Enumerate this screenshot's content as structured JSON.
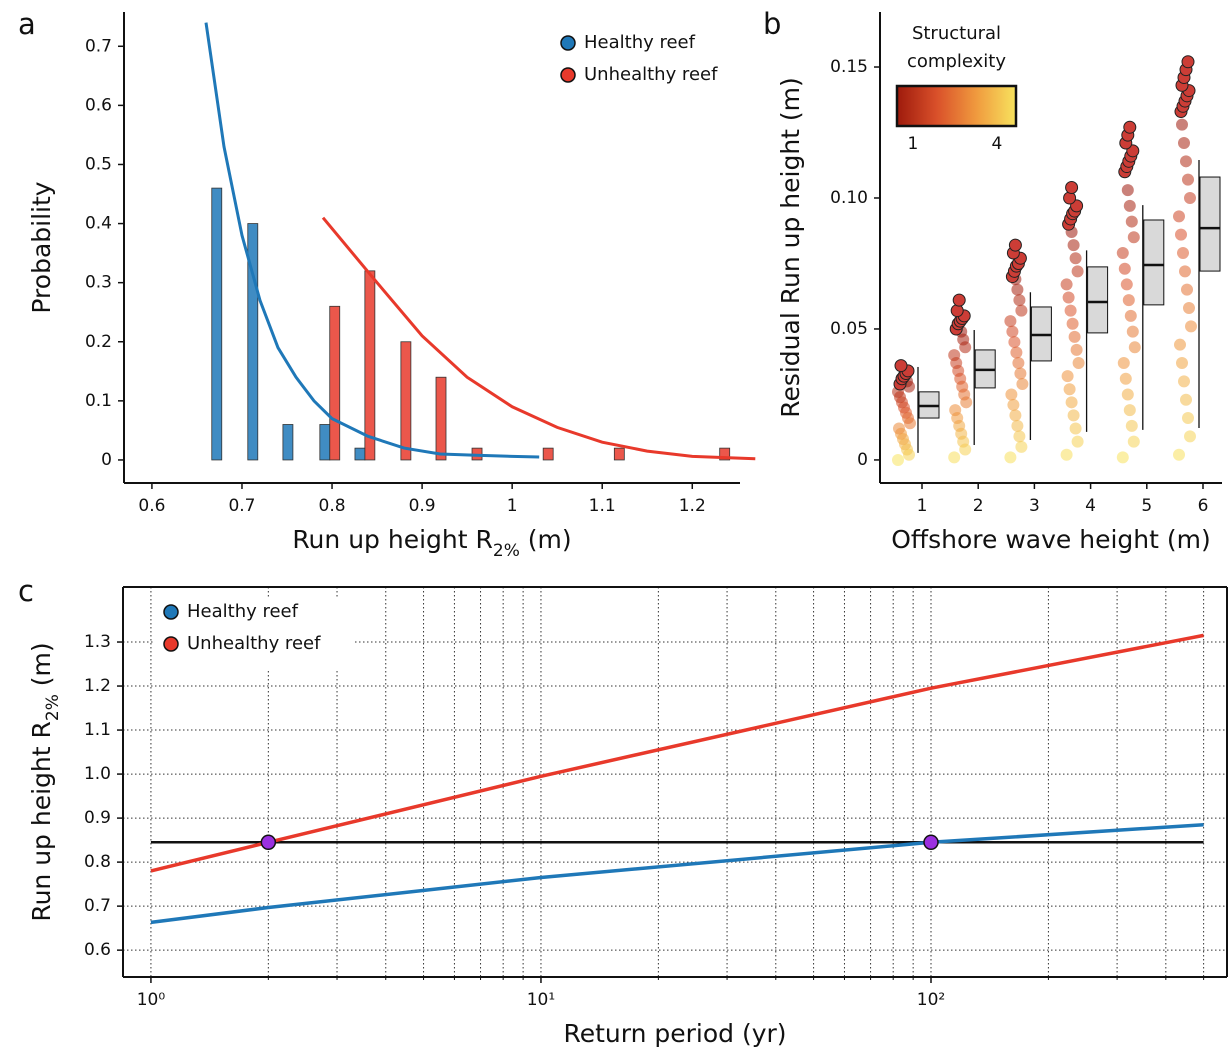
{
  "chart_data": [
    {
      "type": "bar",
      "panel": "a",
      "xlabel": [
        "Run up height R",
        "2%",
        " (m)"
      ],
      "ylabel": "Probability",
      "xlim": [
        0.569,
        1.253
      ],
      "ylim": [
        -0.039,
        0.758
      ],
      "xticks": [
        0.6,
        0.7,
        0.8,
        0.9,
        1.0,
        1.1,
        1.2
      ],
      "yticks": [
        0,
        0.1,
        0.2,
        0.3,
        0.4,
        0.5,
        0.6,
        0.7
      ],
      "spines": [
        "left",
        "bottom"
      ],
      "legend": "upper right",
      "series": [
        {
          "name": "Healthy reef",
          "color": "#1f78b8",
          "x": [
            0.672,
            0.712,
            0.751,
            0.792,
            0.831
          ],
          "values": [
            0.46,
            0.4,
            0.06,
            0.06,
            0.02
          ],
          "fit_x": [
            0.66,
            0.68,
            0.7,
            0.72,
            0.74,
            0.76,
            0.78,
            0.8,
            0.84,
            0.88,
            0.92,
            0.96,
            1.0,
            1.03
          ],
          "fit_values": [
            0.74,
            0.53,
            0.38,
            0.27,
            0.19,
            0.14,
            0.1,
            0.07,
            0.04,
            0.02,
            0.01,
            0.008,
            0.006,
            0.005
          ]
        },
        {
          "name": "Unhealthy reef",
          "color": "#e8392b",
          "x": [
            0.803,
            0.842,
            0.882,
            0.921,
            0.961,
            1.04,
            1.119,
            1.236
          ],
          "values": [
            0.26,
            0.32,
            0.2,
            0.14,
            0.02,
            0.02,
            0.02,
            0.02
          ],
          "fit_x": [
            0.79,
            0.85,
            0.9,
            0.95,
            1.0,
            1.05,
            1.1,
            1.15,
            1.2,
            1.27
          ],
          "fit_values": [
            0.41,
            0.3,
            0.21,
            0.14,
            0.09,
            0.055,
            0.03,
            0.015,
            0.006,
            0.002
          ]
        }
      ]
    },
    {
      "type": "box",
      "panel": "b",
      "xlabel": "Offshore wave height (m)",
      "ylabel": "Residual Run up height (m)",
      "categories": [
        "1",
        "2",
        "3",
        "4",
        "5",
        "6"
      ],
      "ylim": [
        -0.0088,
        0.171
      ],
      "yticks": [
        0,
        0.05,
        {
          "value": 0.1,
          "label": "0.10"
        },
        0.15
      ],
      "spines": [
        "left",
        "bottom"
      ],
      "colorbar": {
        "title": [
          "Structural",
          "complexity"
        ],
        "lim": [
          0.43,
          4.68
        ],
        "ticks": [
          1,
          4
        ],
        "colors": [
          "#9e1a0c",
          "#d9502a",
          "#f09a3e",
          "#f7e35e"
        ]
      },
      "highlight_color": "#cc3d36",
      "points": [
        [
          0.0,
          0.002,
          0.004,
          0.006,
          0.008,
          0.01,
          0.012,
          0.014,
          0.016,
          0.018,
          0.02,
          0.022,
          0.024,
          0.026,
          0.028,
          0.03
        ],
        [
          0.001,
          0.004,
          0.007,
          0.01,
          0.013,
          0.016,
          0.019,
          0.022,
          0.025,
          0.028,
          0.031,
          0.034,
          0.037,
          0.04,
          0.043,
          0.046,
          0.049
        ],
        [
          0.001,
          0.005,
          0.009,
          0.013,
          0.017,
          0.021,
          0.025,
          0.029,
          0.033,
          0.037,
          0.041,
          0.045,
          0.049,
          0.053,
          0.057,
          0.061,
          0.065,
          0.069
        ],
        [
          0.002,
          0.007,
          0.012,
          0.017,
          0.022,
          0.027,
          0.032,
          0.037,
          0.042,
          0.047,
          0.052,
          0.057,
          0.062,
          0.067,
          0.072,
          0.077,
          0.082,
          0.087
        ],
        [
          0.001,
          0.007,
          0.013,
          0.019,
          0.025,
          0.031,
          0.037,
          0.043,
          0.049,
          0.055,
          0.061,
          0.067,
          0.073,
          0.079,
          0.085,
          0.091,
          0.097,
          0.103
        ],
        [
          0.002,
          0.009,
          0.016,
          0.023,
          0.03,
          0.037,
          0.044,
          0.051,
          0.058,
          0.065,
          0.072,
          0.079,
          0.086,
          0.093,
          0.1,
          0.107,
          0.114,
          0.121,
          0.128
        ]
      ],
      "highlights": [
        [
          0.029,
          0.031,
          0.032,
          0.033,
          0.034,
          0.036
        ],
        [
          0.05,
          0.052,
          0.053,
          0.054,
          0.055,
          0.057,
          0.061
        ],
        [
          0.07,
          0.072,
          0.074,
          0.075,
          0.077,
          0.079,
          0.082
        ],
        [
          0.09,
          0.092,
          0.094,
          0.095,
          0.097,
          0.1,
          0.104
        ],
        [
          0.11,
          0.112,
          0.114,
          0.116,
          0.118,
          0.121,
          0.124,
          0.127
        ],
        [
          0.133,
          0.135,
          0.137,
          0.139,
          0.141,
          0.143,
          0.146,
          0.149,
          0.152
        ]
      ],
      "boxes": [
        {
          "whislo": 0.0027,
          "q1": 0.016,
          "med": 0.0206,
          "q3": 0.026,
          "whishi": 0.0355
        },
        {
          "whislo": 0.0057,
          "q1": 0.0275,
          "med": 0.0344,
          "q3": 0.042,
          "whishi": 0.0496
        },
        {
          "whislo": 0.0076,
          "q1": 0.0378,
          "med": 0.0477,
          "q3": 0.0584,
          "whishi": 0.064
        },
        {
          "whislo": 0.0107,
          "q1": 0.0485,
          "med": 0.0603,
          "q3": 0.0737,
          "whishi": 0.08
        },
        {
          "whislo": 0.0115,
          "q1": 0.0592,
          "med": 0.0744,
          "q3": 0.0916,
          "whishi": 0.0973
        },
        {
          "whislo": 0.0122,
          "q1": 0.0721,
          "med": 0.0885,
          "q3": 0.108,
          "whishi": 0.1145
        }
      ]
    },
    {
      "type": "line",
      "panel": "c",
      "xlabel": "Return period (yr)",
      "ylabel": [
        "Run up height R",
        "2%",
        " (m)"
      ],
      "xscale": "log",
      "xlim": [
        0.848,
        574
      ],
      "ylim": [
        0.539,
        1.425
      ],
      "xticks": [
        {
          "value": 1,
          "label": "10⁰"
        },
        {
          "value": 10,
          "label": "10¹"
        },
        {
          "value": 100,
          "label": "10²"
        }
      ],
      "xminor": [
        2,
        3,
        4,
        5,
        6,
        7,
        8,
        9,
        20,
        30,
        40,
        50,
        60,
        70,
        80,
        90,
        200,
        300,
        400,
        500
      ],
      "yticks": [
        0.6,
        0.7,
        0.8,
        0.9,
        {
          "value": 1,
          "label": "1.0"
        },
        1.1,
        1.2,
        1.3
      ],
      "grid": true,
      "spines": [
        "left",
        "bottom",
        "top",
        "right"
      ],
      "legend": "upper left",
      "series": [
        {
          "name": "Healthy reef",
          "color": "#1f78b8",
          "x": [
            1,
            2,
            10,
            100,
            500
          ],
          "values": [
            0.663,
            0.697,
            0.765,
            0.845,
            0.885
          ]
        },
        {
          "name": "Unhealthy reef",
          "color": "#e8392b",
          "x": [
            1,
            2,
            10,
            100,
            500
          ],
          "values": [
            0.78,
            0.845,
            0.995,
            1.195,
            1.315
          ]
        }
      ],
      "hline": {
        "value": 0.845,
        "x": [
          1,
          500
        ],
        "color": "#111111"
      },
      "markers": {
        "x": [
          2,
          100
        ],
        "values": [
          0.845,
          0.845
        ],
        "color": "#9b30e0"
      }
    }
  ]
}
